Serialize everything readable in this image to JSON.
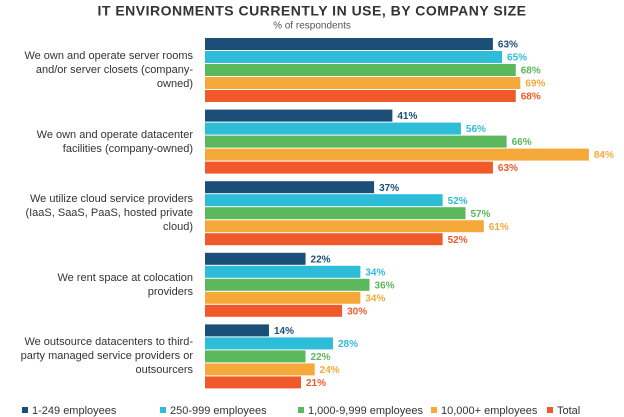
{
  "chart_data": {
    "type": "bar",
    "orientation": "horizontal",
    "title": "IT ENVIRONMENTS CURRENTLY IN USE, BY COMPANY SIZE",
    "subtitle": "% of respondents",
    "categories": [
      "We own and operate server rooms and/or server closets (company-owned)",
      "We own and operate datacenter facilities (company-owned)",
      "We utilize cloud service providers (IaaS, SaaS, PaaS, hosted private cloud)",
      "We rent space at colocation providers",
      "We outsource datacenters to third-party managed service providers or outsourcers"
    ],
    "series": [
      {
        "name": "1-249 employees",
        "color": "#1b4f78",
        "values": [
          63,
          41,
          37,
          22,
          14
        ],
        "value_labels": [
          "63%",
          "41%",
          "37%",
          "22%",
          "14%"
        ]
      },
      {
        "name": "250-999 employees",
        "color": "#2ebdd9",
        "values": [
          65,
          56,
          52,
          34,
          28
        ],
        "value_labels": [
          "65%",
          "56%",
          "52%",
          "34%",
          "28%"
        ]
      },
      {
        "name": "1,000-9,999 employees",
        "color": "#5cb85c",
        "values": [
          68,
          66,
          57,
          36,
          22
        ],
        "value_labels": [
          "68%",
          "66%",
          "57%",
          "36%",
          "22%"
        ]
      },
      {
        "name": "10,000+ employees",
        "color": "#f6a93b",
        "values": [
          69,
          84,
          61,
          34,
          24
        ],
        "value_labels": [
          "69%",
          "84%",
          "61%",
          "34%",
          "24%"
        ]
      },
      {
        "name": "Total",
        "color": "#f05a2b",
        "values": [
          68,
          63,
          52,
          30,
          21
        ],
        "value_labels": [
          "68%",
          "63%",
          "52%",
          "30%",
          "21%"
        ]
      }
    ],
    "legend": "bottom"
  }
}
